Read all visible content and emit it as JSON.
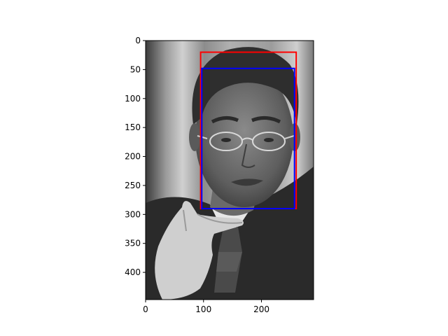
{
  "chart_data": {
    "type": "image",
    "image": {
      "width": 290,
      "height": 447,
      "content_icon": "grayscale-portrait-photo-icon"
    },
    "xlim": [
      0,
      290
    ],
    "ylim": [
      447,
      0
    ],
    "xticks": [
      0,
      100,
      200
    ],
    "yticks": [
      0,
      50,
      100,
      150,
      200,
      250,
      300,
      350,
      400
    ],
    "xtick_labels": [
      "0",
      "100",
      "200"
    ],
    "ytick_labels": [
      "0",
      "50",
      "100",
      "150",
      "200",
      "250",
      "300",
      "350",
      "400"
    ],
    "boxes": [
      {
        "color": "#ff0000",
        "x0": 95,
        "y0": 20,
        "x1": 260,
        "y1": 290
      },
      {
        "color": "#0000ff",
        "x0": 97,
        "y0": 48,
        "x1": 257,
        "y1": 290
      }
    ],
    "title": "",
    "xlabel": "",
    "ylabel": "",
    "grid": false
  }
}
